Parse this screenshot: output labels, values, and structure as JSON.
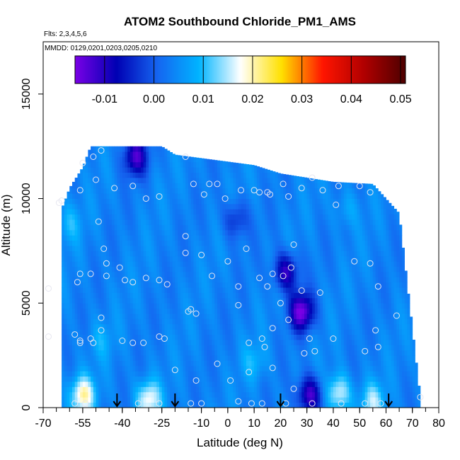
{
  "chart_data": {
    "type": "heatmap",
    "title": "ATOM2 Southbound Chloride_PM1_AMS",
    "subtitle_flights": "Flts: 2,3,4,5,6",
    "subtitle_dates": "MMDD: 0129,0201,0203,0205,0210",
    "xlabel": "Latitude (deg N)",
    "ylabel": "Altitude (m)",
    "xlim": [
      -70,
      80
    ],
    "ylim": [
      0,
      17500
    ],
    "x_ticks": [
      -70,
      -55,
      -40,
      -25,
      -10,
      0,
      10,
      20,
      30,
      40,
      50,
      60,
      70,
      80
    ],
    "x_tick_labels": [
      "-70",
      "-55",
      "-40",
      "-25",
      "-10",
      "0",
      "10",
      "20",
      "30",
      "40",
      "50",
      "60",
      "70",
      "80"
    ],
    "y_ticks": [
      0,
      5000,
      10000,
      15000
    ],
    "y_tick_labels": [
      "0",
      "5000",
      "10000",
      "15000"
    ],
    "colorbar": {
      "range": [
        -0.016,
        0.051
      ],
      "ticks": [
        -0.01,
        0.0,
        0.01,
        0.02,
        0.03,
        0.04,
        0.05
      ],
      "tick_labels": [
        "-0.01",
        "0.00",
        "0.01",
        "0.02",
        "0.03",
        "0.04",
        "0.05"
      ],
      "colors": [
        "#7a00e6",
        "#0000b3",
        "#1565f0",
        "#00b4ff",
        "#ffffff",
        "#ffe000",
        "#ff1500",
        "#b00000",
        "#4d0000"
      ]
    },
    "background_value": 0.004,
    "anomalies": [
      {
        "lat": -35,
        "alt": 12000,
        "value": -0.012
      },
      {
        "lat": 22,
        "alt": 6500,
        "value": -0.011
      },
      {
        "lat": 28,
        "alt": 4600,
        "value": -0.016
      },
      {
        "lat": 31,
        "alt": 600,
        "value": -0.013
      },
      {
        "lat": -55,
        "alt": 600,
        "value": 0.02
      },
      {
        "lat": -30,
        "alt": 400,
        "value": 0.018
      },
      {
        "lat": 42,
        "alt": 700,
        "value": 0.017
      },
      {
        "lat": 55,
        "alt": 300,
        "value": 0.014
      },
      {
        "lat": -60,
        "alt": 8800,
        "value": 0.009
      },
      {
        "lat": 45,
        "alt": 9500,
        "value": 0.008
      },
      {
        "lat": 3,
        "alt": 9000,
        "value": -0.004
      },
      {
        "lat": -48,
        "alt": 3200,
        "value": 0.008
      },
      {
        "lat": 10,
        "alt": 2200,
        "value": 0.009
      }
    ],
    "extent_top": [
      [
        -63,
        9500
      ],
      [
        -60,
        10500
      ],
      [
        -55,
        11500
      ],
      [
        -52,
        12500
      ],
      [
        -25,
        12500
      ],
      [
        -20,
        12100
      ],
      [
        10,
        11600
      ],
      [
        20,
        11200
      ],
      [
        40,
        10800
      ],
      [
        55,
        10700
      ],
      [
        65,
        9300
      ],
      [
        70,
        3800
      ],
      [
        73,
        500
      ]
    ],
    "arrows_lat": [
      -42,
      -20,
      20,
      61
    ],
    "points": [
      {
        "lat": -48,
        "alt": 12300
      },
      {
        "lat": -51,
        "alt": 12000
      },
      {
        "lat": -55,
        "alt": 11700
      },
      {
        "lat": -50,
        "alt": 10900
      },
      {
        "lat": -56,
        "alt": 10400
      },
      {
        "lat": -43,
        "alt": 10500
      },
      {
        "lat": -36,
        "alt": 10600
      },
      {
        "lat": -31,
        "alt": 10000
      },
      {
        "lat": -26,
        "alt": 10100
      },
      {
        "lat": -16,
        "alt": 12000
      },
      {
        "lat": -13,
        "alt": 10700
      },
      {
        "lat": -9,
        "alt": 10200
      },
      {
        "lat": -7,
        "alt": 10700
      },
      {
        "lat": -4,
        "alt": 10700
      },
      {
        "lat": -1,
        "alt": 10000
      },
      {
        "lat": 5,
        "alt": 10400
      },
      {
        "lat": 10,
        "alt": 10400
      },
      {
        "lat": 12,
        "alt": 10300
      },
      {
        "lat": 15,
        "alt": 10300
      },
      {
        "lat": 16,
        "alt": 10200
      },
      {
        "lat": 21,
        "alt": 10700
      },
      {
        "lat": 28,
        "alt": 10500
      },
      {
        "lat": 36,
        "alt": 10400
      },
      {
        "lat": 42,
        "alt": 10600
      },
      {
        "lat": 50,
        "alt": 10600
      },
      {
        "lat": 54,
        "alt": 10300
      },
      {
        "lat": -64,
        "alt": 9800
      },
      {
        "lat": -49,
        "alt": 8900
      },
      {
        "lat": -16,
        "alt": 8200
      },
      {
        "lat": -16,
        "alt": 7400
      },
      {
        "lat": -10,
        "alt": 7300
      },
      {
        "lat": 7,
        "alt": 7600
      },
      {
        "lat": 0,
        "alt": 7000
      },
      {
        "lat": 25,
        "alt": 7800
      },
      {
        "lat": 48,
        "alt": 7000
      },
      {
        "lat": 54,
        "alt": 6900
      },
      {
        "lat": -47,
        "alt": 7600
      },
      {
        "lat": -46,
        "alt": 6900
      },
      {
        "lat": -41,
        "alt": 6700
      },
      {
        "lat": -56,
        "alt": 6400
      },
      {
        "lat": -52,
        "alt": 6400
      },
      {
        "lat": -46,
        "alt": 6300
      },
      {
        "lat": -39,
        "alt": 6100
      },
      {
        "lat": -36,
        "alt": 6000
      },
      {
        "lat": -31,
        "alt": 6200
      },
      {
        "lat": -26,
        "alt": 6100
      },
      {
        "lat": -23,
        "alt": 5900
      },
      {
        "lat": -68,
        "alt": 5700
      },
      {
        "lat": -57,
        "alt": 6000
      },
      {
        "lat": -6,
        "alt": 6300
      },
      {
        "lat": 4,
        "alt": 5800
      },
      {
        "lat": 12,
        "alt": 6200
      },
      {
        "lat": 15,
        "alt": 5800
      },
      {
        "lat": 17,
        "alt": 6400
      },
      {
        "lat": 21,
        "alt": 6300
      },
      {
        "lat": 24,
        "alt": 6700
      },
      {
        "lat": 28,
        "alt": 5600
      },
      {
        "lat": 35,
        "alt": 5500
      },
      {
        "lat": 57,
        "alt": 5800
      },
      {
        "lat": -14,
        "alt": 4700
      },
      {
        "lat": -15,
        "alt": 4600
      },
      {
        "lat": -12,
        "alt": 4500
      },
      {
        "lat": 4,
        "alt": 4900
      },
      {
        "lat": 20,
        "alt": 5000
      },
      {
        "lat": 23,
        "alt": 4200
      },
      {
        "lat": 17,
        "alt": 3800
      },
      {
        "lat": 31,
        "alt": 3300
      },
      {
        "lat": 40,
        "alt": 3300
      },
      {
        "lat": 56,
        "alt": 3700
      },
      {
        "lat": 64,
        "alt": 4400
      },
      {
        "lat": -48,
        "alt": 4300
      },
      {
        "lat": -48,
        "alt": 3700
      },
      {
        "lat": -58,
        "alt": 3500
      },
      {
        "lat": -68,
        "alt": 3400
      },
      {
        "lat": -56,
        "alt": 3100
      },
      {
        "lat": -52,
        "alt": 3300
      },
      {
        "lat": -56,
        "alt": 3200
      },
      {
        "lat": -51,
        "alt": 3100
      },
      {
        "lat": -40,
        "alt": 3200
      },
      {
        "lat": -36,
        "alt": 3100
      },
      {
        "lat": -32,
        "alt": 3100
      },
      {
        "lat": -26,
        "alt": 3400
      },
      {
        "lat": -24,
        "alt": 3300
      },
      {
        "lat": 8,
        "alt": 3100
      },
      {
        "lat": 13,
        "alt": 3300
      },
      {
        "lat": 14,
        "alt": 2900
      },
      {
        "lat": 29,
        "alt": 2600
      },
      {
        "lat": 33,
        "alt": 2700
      },
      {
        "lat": 52,
        "alt": 2700
      },
      {
        "lat": 57,
        "alt": 2900
      },
      {
        "lat": -4,
        "alt": 2100
      },
      {
        "lat": 8,
        "alt": 1700
      },
      {
        "lat": -20,
        "alt": 1800
      },
      {
        "lat": 17,
        "alt": 1900
      },
      {
        "lat": -12,
        "alt": 1300
      },
      {
        "lat": 1,
        "alt": 1300
      },
      {
        "lat": 25,
        "alt": 900
      },
      {
        "lat": -54,
        "alt": 200
      },
      {
        "lat": -58,
        "alt": 200
      },
      {
        "lat": -34,
        "alt": 200
      },
      {
        "lat": -26,
        "alt": 200
      },
      {
        "lat": -14,
        "alt": 200
      },
      {
        "lat": -10,
        "alt": 200
      },
      {
        "lat": 4,
        "alt": 300
      },
      {
        "lat": 9,
        "alt": 200
      },
      {
        "lat": 13,
        "alt": 200
      },
      {
        "lat": 22,
        "alt": 200
      },
      {
        "lat": 32,
        "alt": 200
      },
      {
        "lat": 43,
        "alt": 200
      },
      {
        "lat": 52,
        "alt": 200
      },
      {
        "lat": 58,
        "alt": 200
      },
      {
        "lat": 73,
        "alt": 500
      },
      {
        "lat": -63,
        "alt": 9900
      },
      {
        "lat": 41,
        "alt": 9700
      },
      {
        "lat": 23,
        "alt": 10100
      },
      {
        "lat": 32,
        "alt": 11000
      }
    ]
  }
}
